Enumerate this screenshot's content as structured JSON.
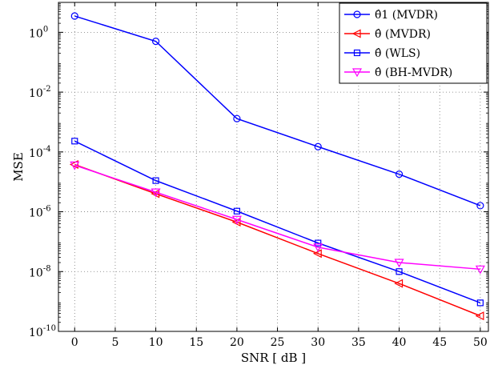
{
  "chart_data": {
    "type": "line",
    "xlabel": "SNR [ dB ]",
    "ylabel": "MSE",
    "x": [
      0,
      10,
      20,
      30,
      40,
      50
    ],
    "xlim": [
      -2,
      51
    ],
    "ylim": [
      1e-10,
      10.0
    ],
    "yscale": "log",
    "grid": true,
    "legend_position": "top-right",
    "xticks": [
      "0",
      "5",
      "10",
      "15",
      "20",
      "25",
      "30",
      "35",
      "40",
      "45",
      "50"
    ],
    "yticks": [
      {
        "base": "10",
        "exp": "0"
      },
      {
        "base": "10",
        "exp": "-2"
      },
      {
        "base": "10",
        "exp": "-4"
      },
      {
        "base": "10",
        "exp": "-6"
      },
      {
        "base": "10",
        "exp": "-8"
      },
      {
        "base": "10",
        "exp": "-10"
      }
    ],
    "series": [
      {
        "name": "θ̂1 (MVDR)",
        "color": "#0000ff",
        "marker": "circle",
        "values": [
          3.5,
          0.5,
          0.0013,
          0.00015,
          1.8e-05,
          1.6e-06
        ]
      },
      {
        "name": "θ̂ (MVDR)",
        "color": "#ff0000",
        "marker": "triangle-left",
        "values": [
          3.8e-05,
          4e-06,
          4.5e-07,
          4e-08,
          4e-09,
          3.3e-10
        ]
      },
      {
        "name": "θ̂ (WLS)",
        "color": "#0000ff",
        "marker": "square",
        "values": [
          0.00023,
          1.1e-05,
          1.05e-06,
          9e-08,
          1e-08,
          9e-10
        ]
      },
      {
        "name": "θ̂ (BH-MVDR)",
        "color": "#ff00ff",
        "marker": "triangle-down",
        "values": [
          3.6e-05,
          4.5e-06,
          5.5e-07,
          6.5e-08,
          2e-08,
          1.2e-08
        ]
      }
    ]
  }
}
